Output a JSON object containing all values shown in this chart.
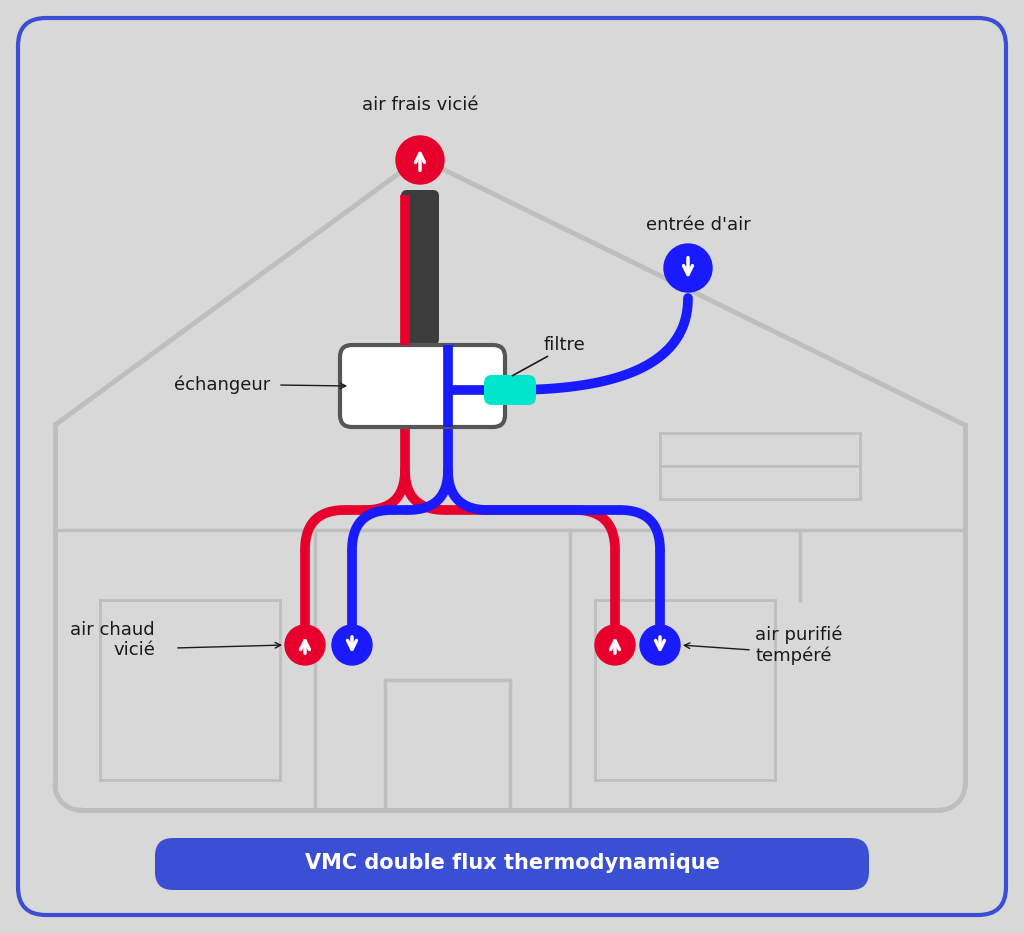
{
  "bg_color": "#d8d8d8",
  "house_color": "#bebebe",
  "red_color": "#e8002d",
  "blue_color": "#1a1aff",
  "dark_color": "#3c3c3c",
  "cyan_color": "#00e5cc",
  "title_bg": "#3b4fd4",
  "title_text": "VMC double flux thermodynamique",
  "label_frais_vicie": "air frais vicié",
  "label_entree_air": "entrée d'air",
  "label_filtre": "filtre",
  "label_echangeur": "échangeur",
  "label_air_chaud_vicie": "air chaud\nvicié",
  "label_air_purifie": "air purifié\ntempéré",
  "fig_width": 10.24,
  "fig_height": 9.33
}
